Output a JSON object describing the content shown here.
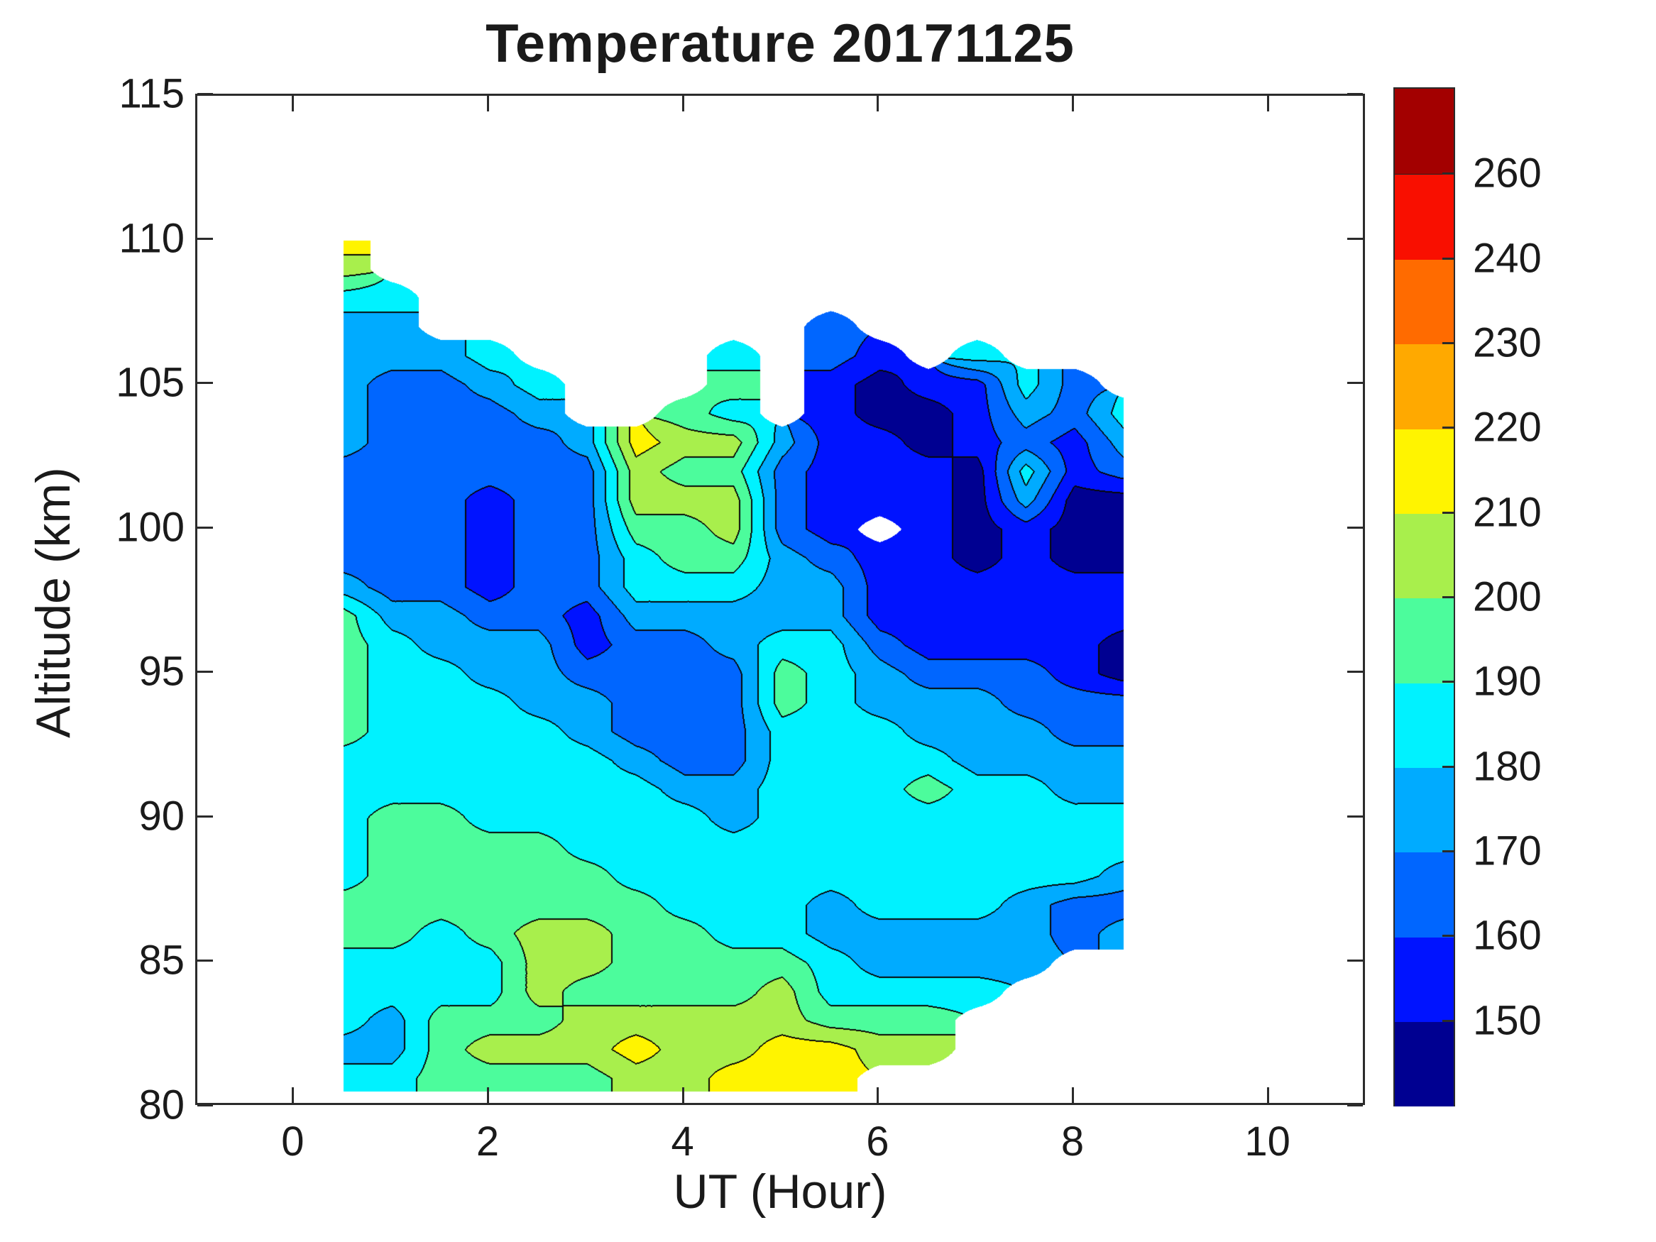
{
  "chart_data": {
    "type": "heatmap",
    "subtype": "filled-contour",
    "title": "Temperature 20171125",
    "xlabel": "UT (Hour)",
    "ylabel": "Altitude (km)",
    "xlim": [
      -1,
      11
    ],
    "ylim": [
      80,
      115
    ],
    "grid_lines": "off",
    "x_tick_labels": [
      "0",
      "2",
      "4",
      "6",
      "8",
      "10"
    ],
    "x_tick_values": [
      0,
      2,
      4,
      6,
      8,
      10
    ],
    "y_tick_labels": [
      "80",
      "85",
      "90",
      "95",
      "100",
      "105",
      "110",
      "115"
    ],
    "y_tick_values": [
      80,
      85,
      90,
      95,
      100,
      105,
      110,
      115
    ],
    "colorbar": {
      "position": "right",
      "tick_labels": [
        "150",
        "160",
        "170",
        "180",
        "190",
        "200",
        "210",
        "220",
        "230",
        "240",
        "260"
      ],
      "tick_values": [
        150,
        160,
        170,
        180,
        190,
        200,
        210,
        220,
        230,
        240,
        260
      ],
      "thresholds": [
        150,
        160,
        170,
        180,
        190,
        200,
        210,
        220,
        230,
        240,
        260
      ],
      "segment_colors_bottom_to_top": [
        "#000091",
        "#0013FF",
        "#0066FF",
        "#00ABFF",
        "#00F2FF",
        "#4CFC9C",
        "#A8EF4C",
        "#FFF400",
        "#FFA900",
        "#FF6B00",
        "#F90F00",
        "#A30000"
      ]
    },
    "line_color": "#000000",
    "no_data_color": "#FFFFFF",
    "grid": {
      "ut": [
        0.5,
        1.0,
        1.5,
        2.0,
        2.5,
        3.0,
        3.5,
        4.0,
        4.5,
        5.0,
        5.5,
        6.0,
        6.5,
        7.0,
        7.5,
        8.0,
        8.5
      ],
      "alt_top_to_bottom": [
        110,
        109,
        108,
        107,
        106,
        105,
        104,
        103,
        102,
        101,
        100,
        99,
        98,
        97,
        96,
        95,
        94,
        93,
        92,
        91,
        90,
        89,
        88,
        87,
        86,
        85,
        84,
        83,
        82,
        81
      ],
      "temps": [
        [
          215,
          null,
          null,
          null,
          null,
          null,
          null,
          null,
          null,
          null,
          null,
          null,
          null,
          null,
          null,
          null,
          null
        ],
        [
          205,
          null,
          null,
          null,
          null,
          null,
          null,
          null,
          null,
          null,
          null,
          null,
          null,
          null,
          null,
          null,
          null
        ],
        [
          185,
          185,
          null,
          null,
          null,
          null,
          null,
          null,
          null,
          null,
          null,
          null,
          null,
          null,
          null,
          null,
          null
        ],
        [
          175,
          175,
          null,
          null,
          null,
          null,
          null,
          null,
          null,
          null,
          165,
          null,
          null,
          null,
          null,
          null,
          null
        ],
        [
          175,
          175,
          175,
          185,
          null,
          null,
          null,
          null,
          185,
          null,
          165,
          155,
          null,
          185,
          null,
          null,
          null
        ],
        [
          175,
          165,
          165,
          175,
          185,
          null,
          null,
          null,
          195,
          null,
          155,
          145,
          155,
          155,
          185,
          165,
          null
        ],
        [
          175,
          165,
          165,
          165,
          175,
          null,
          null,
          195,
          185,
          null,
          155,
          145,
          145,
          155,
          175,
          165,
          185
        ],
        [
          175,
          165,
          165,
          165,
          165,
          175,
          215,
          205,
          205,
          175,
          155,
          155,
          145,
          155,
          165,
          155,
          175
        ],
        [
          165,
          165,
          165,
          165,
          165,
          165,
          205,
          195,
          195,
          165,
          155,
          155,
          155,
          145,
          185,
          155,
          165
        ],
        [
          165,
          165,
          165,
          155,
          165,
          165,
          205,
          205,
          205,
          165,
          155,
          155,
          155,
          145,
          175,
          145,
          145
        ],
        [
          165,
          165,
          165,
          155,
          165,
          165,
          195,
          195,
          205,
          165,
          155,
          null,
          155,
          145,
          155,
          145,
          145
        ],
        [
          165,
          165,
          165,
          155,
          165,
          165,
          185,
          195,
          195,
          175,
          165,
          155,
          155,
          145,
          155,
          145,
          145
        ],
        [
          175,
          165,
          165,
          155,
          165,
          165,
          185,
          185,
          185,
          175,
          175,
          155,
          155,
          155,
          155,
          155,
          155
        ],
        [
          195,
          175,
          175,
          165,
          165,
          155,
          175,
          175,
          175,
          175,
          175,
          155,
          155,
          155,
          155,
          155,
          155
        ],
        [
          195,
          185,
          175,
          175,
          175,
          155,
          165,
          165,
          175,
          185,
          185,
          165,
          155,
          155,
          155,
          155,
          145
        ],
        [
          195,
          185,
          185,
          175,
          175,
          165,
          165,
          165,
          165,
          195,
          185,
          175,
          165,
          165,
          165,
          155,
          145
        ],
        [
          195,
          185,
          185,
          185,
          175,
          175,
          165,
          165,
          165,
          195,
          185,
          175,
          175,
          175,
          165,
          165,
          165
        ],
        [
          195,
          185,
          185,
          185,
          185,
          175,
          165,
          165,
          165,
          185,
          185,
          185,
          175,
          175,
          175,
          165,
          165
        ],
        [
          185,
          185,
          185,
          185,
          185,
          185,
          175,
          165,
          165,
          185,
          185,
          185,
          185,
          175,
          175,
          175,
          175
        ],
        [
          185,
          185,
          185,
          185,
          185,
          185,
          185,
          175,
          175,
          185,
          185,
          185,
          195,
          185,
          185,
          175,
          175
        ],
        [
          185,
          195,
          195,
          185,
          185,
          185,
          185,
          185,
          175,
          185,
          185,
          185,
          185,
          185,
          185,
          185,
          185
        ],
        [
          185,
          195,
          195,
          195,
          195,
          185,
          185,
          185,
          185,
          185,
          185,
          185,
          185,
          185,
          185,
          185,
          185
        ],
        [
          185,
          195,
          195,
          195,
          195,
          195,
          185,
          185,
          185,
          185,
          185,
          185,
          185,
          185,
          185,
          185,
          175
        ],
        [
          195,
          195,
          195,
          195,
          195,
          195,
          195,
          185,
          185,
          185,
          175,
          185,
          185,
          185,
          175,
          165,
          165
        ],
        [
          195,
          195,
          185,
          195,
          205,
          205,
          195,
          195,
          185,
          185,
          175,
          175,
          175,
          175,
          175,
          165,
          175
        ],
        [
          185,
          185,
          185,
          185,
          205,
          205,
          195,
          195,
          195,
          195,
          185,
          175,
          175,
          175,
          175,
          null,
          null
        ],
        [
          185,
          185,
          185,
          185,
          205,
          195,
          195,
          195,
          195,
          205,
          185,
          185,
          185,
          185,
          null,
          null,
          null
        ],
        [
          185,
          175,
          195,
          195,
          195,
          205,
          205,
          205,
          205,
          205,
          195,
          195,
          195,
          null,
          null,
          null,
          null
        ],
        [
          175,
          175,
          195,
          205,
          205,
          205,
          215,
          205,
          205,
          215,
          215,
          205,
          205,
          null,
          null,
          null,
          null
        ],
        [
          185,
          185,
          195,
          195,
          195,
          195,
          205,
          205,
          215,
          215,
          215,
          null,
          null,
          null,
          null,
          null,
          null
        ]
      ]
    }
  }
}
